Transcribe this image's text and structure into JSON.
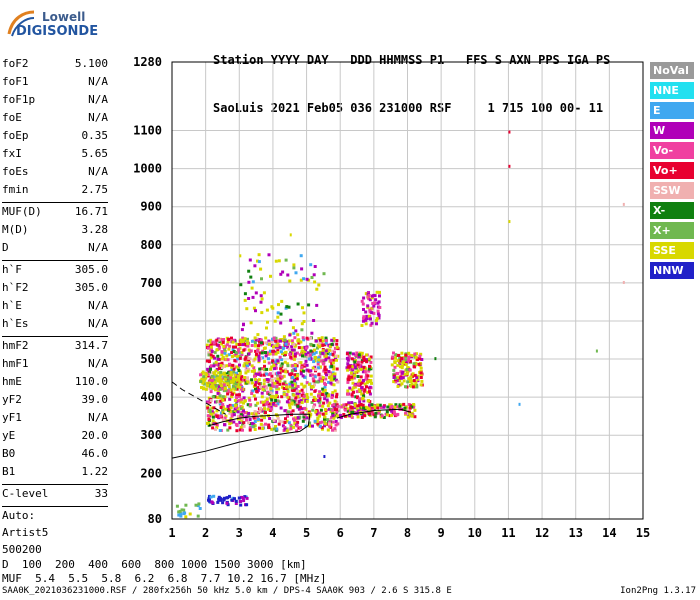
{
  "logo": {
    "line1": "Lowell",
    "line2": "DIGISONDE"
  },
  "header": {
    "labels": "Station YYYY DAY   DDD HHMMSS P1   FFS S AXN PPS IGA PS",
    "values": "SaoLuis 2021 Feb05 036 231000 RSF     1 715 100 00- 11"
  },
  "params": [
    {
      "name": "foF2",
      "value": "5.100"
    },
    {
      "name": "foF1",
      "value": "N/A"
    },
    {
      "name": "foF1p",
      "value": "N/A"
    },
    {
      "name": "foE",
      "value": "N/A"
    },
    {
      "name": "foEp",
      "value": "0.35"
    },
    {
      "name": "fxI",
      "value": "5.65"
    },
    {
      "name": "foEs",
      "value": "N/A"
    },
    {
      "name": "fmin",
      "value": "2.75"
    },
    {
      "sep": true
    },
    {
      "name": "MUF(D)",
      "value": "16.71"
    },
    {
      "name": "M(D)",
      "value": "3.28"
    },
    {
      "name": "D",
      "value": "N/A"
    },
    {
      "sep": true
    },
    {
      "name": "h`F",
      "value": "305.0"
    },
    {
      "name": "h`F2",
      "value": "305.0"
    },
    {
      "name": "h`E",
      "value": "N/A"
    },
    {
      "name": "h`Es",
      "value": "N/A"
    },
    {
      "sep": true
    },
    {
      "name": "hmF2",
      "value": "314.7"
    },
    {
      "name": "hmF1",
      "value": "N/A"
    },
    {
      "name": "hmE",
      "value": "110.0"
    },
    {
      "name": "yF2",
      "value": "39.0"
    },
    {
      "name": "yF1",
      "value": "N/A"
    },
    {
      "name": "yE",
      "value": "20.0"
    },
    {
      "name": "B0",
      "value": "46.0"
    },
    {
      "name": "B1",
      "value": "1.22"
    },
    {
      "sep": true
    },
    {
      "name": "C-level",
      "value": "33"
    },
    {
      "sep": true
    },
    {
      "text": "Auto:"
    },
    {
      "text": "Artist5"
    },
    {
      "text": "500200"
    }
  ],
  "legend": [
    {
      "label": "NoVal",
      "color": "#9a9a9a"
    },
    {
      "label": "NNE",
      "color": "#22e0f0"
    },
    {
      "label": "E",
      "color": "#40a8f0"
    },
    {
      "label": "W",
      "color": "#b000b8"
    },
    {
      "label": "Vo-",
      "color": "#f040a0"
    },
    {
      "label": "Vo+",
      "color": "#e80030"
    },
    {
      "label": "SSW",
      "color": "#f0b0b0"
    },
    {
      "label": "X-",
      "color": "#108010"
    },
    {
      "label": "X+",
      "color": "#70b850"
    },
    {
      "label": "SSE",
      "color": "#d8d800"
    },
    {
      "label": "NNW",
      "color": "#2020c8"
    }
  ],
  "chart_data": {
    "type": "scatter",
    "xlim": [
      1,
      15
    ],
    "ylim": [
      80,
      1280
    ],
    "x_ticks": [
      "1",
      "2",
      "3",
      "4",
      "5",
      "6",
      "7",
      "8",
      "9",
      "10",
      "11",
      "12",
      "13",
      "14",
      "15"
    ],
    "y_ticks": [
      "80",
      "200",
      "300",
      "400",
      "500",
      "600",
      "700",
      "800",
      "900",
      "1000",
      "1100",
      "1280"
    ],
    "y_tick_values": [
      80,
      200,
      300,
      400,
      500,
      600,
      700,
      800,
      900,
      1000,
      1100,
      1280
    ],
    "grid": true,
    "traces": [
      {
        "name": "profile",
        "points": [
          [
            1.0,
            240
          ],
          [
            2.0,
            258
          ],
          [
            3.0,
            282
          ],
          [
            4.0,
            300
          ],
          [
            4.8,
            310
          ],
          [
            5.05,
            325
          ],
          [
            5.1,
            355
          ]
        ]
      },
      {
        "name": "x-trace",
        "points": [
          [
            1.0,
            440
          ],
          [
            1.3,
            420
          ],
          [
            1.8,
            395
          ],
          [
            2.3,
            370
          ],
          [
            2.6,
            355
          ]
        ]
      },
      {
        "name": "o-trace-1",
        "points": [
          [
            2.1,
            325
          ],
          [
            2.5,
            335
          ],
          [
            3.0,
            345
          ],
          [
            3.5,
            350
          ],
          [
            4.0,
            352
          ],
          [
            4.6,
            355
          ],
          [
            5.1,
            355
          ]
        ]
      },
      {
        "name": "o-trace-2",
        "points": [
          [
            5.9,
            345
          ],
          [
            6.3,
            355
          ],
          [
            7.0,
            365
          ],
          [
            7.8,
            368
          ],
          [
            8.1,
            360
          ]
        ]
      }
    ],
    "echo_regions": [
      {
        "x": [
          2.0,
          5.9
        ],
        "y": [
          315,
          560
        ],
        "n": 1400,
        "weights": {
          "SSE": 5,
          "Vo-": 3,
          "Vo+": 3,
          "W": 2,
          "SSW": 1,
          "X-": 1,
          "X+": 1,
          "E": 1
        }
      },
      {
        "x": [
          1.8,
          3.0
        ],
        "y": [
          420,
          470
        ],
        "n": 120,
        "weights": {
          "SSE": 5,
          "X+": 2,
          "Vo-": 1
        }
      },
      {
        "x": [
          6.15,
          6.9
        ],
        "y": [
          360,
          520
        ],
        "n": 220,
        "weights": {
          "SSE": 3,
          "Vo-": 3,
          "Vo+": 3,
          "W": 2,
          "X-": 1
        }
      },
      {
        "x": [
          7.5,
          8.4
        ],
        "y": [
          430,
          520
        ],
        "n": 160,
        "weights": {
          "SSE": 4,
          "Vo-": 2,
          "Vo+": 2,
          "W": 2,
          "X+": 1
        }
      },
      {
        "x": [
          5.7,
          8.2
        ],
        "y": [
          350,
          385
        ],
        "n": 180,
        "weights": {
          "SSE": 3,
          "Vo-": 3,
          "Vo+": 2,
          "W": 1,
          "X-": 1
        }
      },
      {
        "x": [
          6.6,
          7.15
        ],
        "y": [
          590,
          680
        ],
        "n": 60,
        "weights": {
          "W": 3,
          "SSE": 2,
          "Vo-": 2
        }
      },
      {
        "x": [
          3.0,
          5.5
        ],
        "y": [
          560,
          780
        ],
        "n": 90,
        "weights": {
          "SSE": 3,
          "W": 2,
          "X-": 1,
          "X+": 1,
          "E": 1
        }
      },
      {
        "x": [
          2.0,
          3.2
        ],
        "y": [
          120,
          145
        ],
        "n": 45,
        "weights": {
          "NNW": 3,
          "W": 2,
          "E": 1
        }
      },
      {
        "x": [
          1.1,
          1.9
        ],
        "y": [
          85,
          125
        ],
        "n": 18,
        "weights": {
          "X+": 2,
          "E": 1,
          "SSE": 1
        }
      }
    ],
    "isolated_points": [
      {
        "x": 11.0,
        "y": 1100,
        "c": "Vo+"
      },
      {
        "x": 11.0,
        "y": 1010,
        "c": "Vo+"
      },
      {
        "x": 11.0,
        "y": 865,
        "c": "SSE"
      },
      {
        "x": 14.4,
        "y": 910,
        "c": "SSW"
      },
      {
        "x": 14.4,
        "y": 705,
        "c": "SSW"
      },
      {
        "x": 13.6,
        "y": 525,
        "c": "X+"
      },
      {
        "x": 11.3,
        "y": 385,
        "c": "E"
      },
      {
        "x": 8.8,
        "y": 505,
        "c": "X-"
      },
      {
        "x": 5.5,
        "y": 248,
        "c": "NNW"
      },
      {
        "x": 3.0,
        "y": 775,
        "c": "SSE"
      },
      {
        "x": 4.5,
        "y": 830,
        "c": "SSE"
      }
    ]
  },
  "footer": {
    "d_label": "D",
    "d_values": "  100  200  400  600  800 1000 1500 3000 [km]",
    "muf_label": "MUF",
    "muf_values": "  5.4  5.5  5.8  6.2  6.8  7.7 10.2 16.7 [MHz]",
    "file_info": "SAA0K_2021036231000.RSF / 280fx256h 50 kHz 5.0 km / DPS-4 SAA0K 903 / 2.6 S 315.8 E",
    "version": "Ion2Png 1.3.17"
  }
}
